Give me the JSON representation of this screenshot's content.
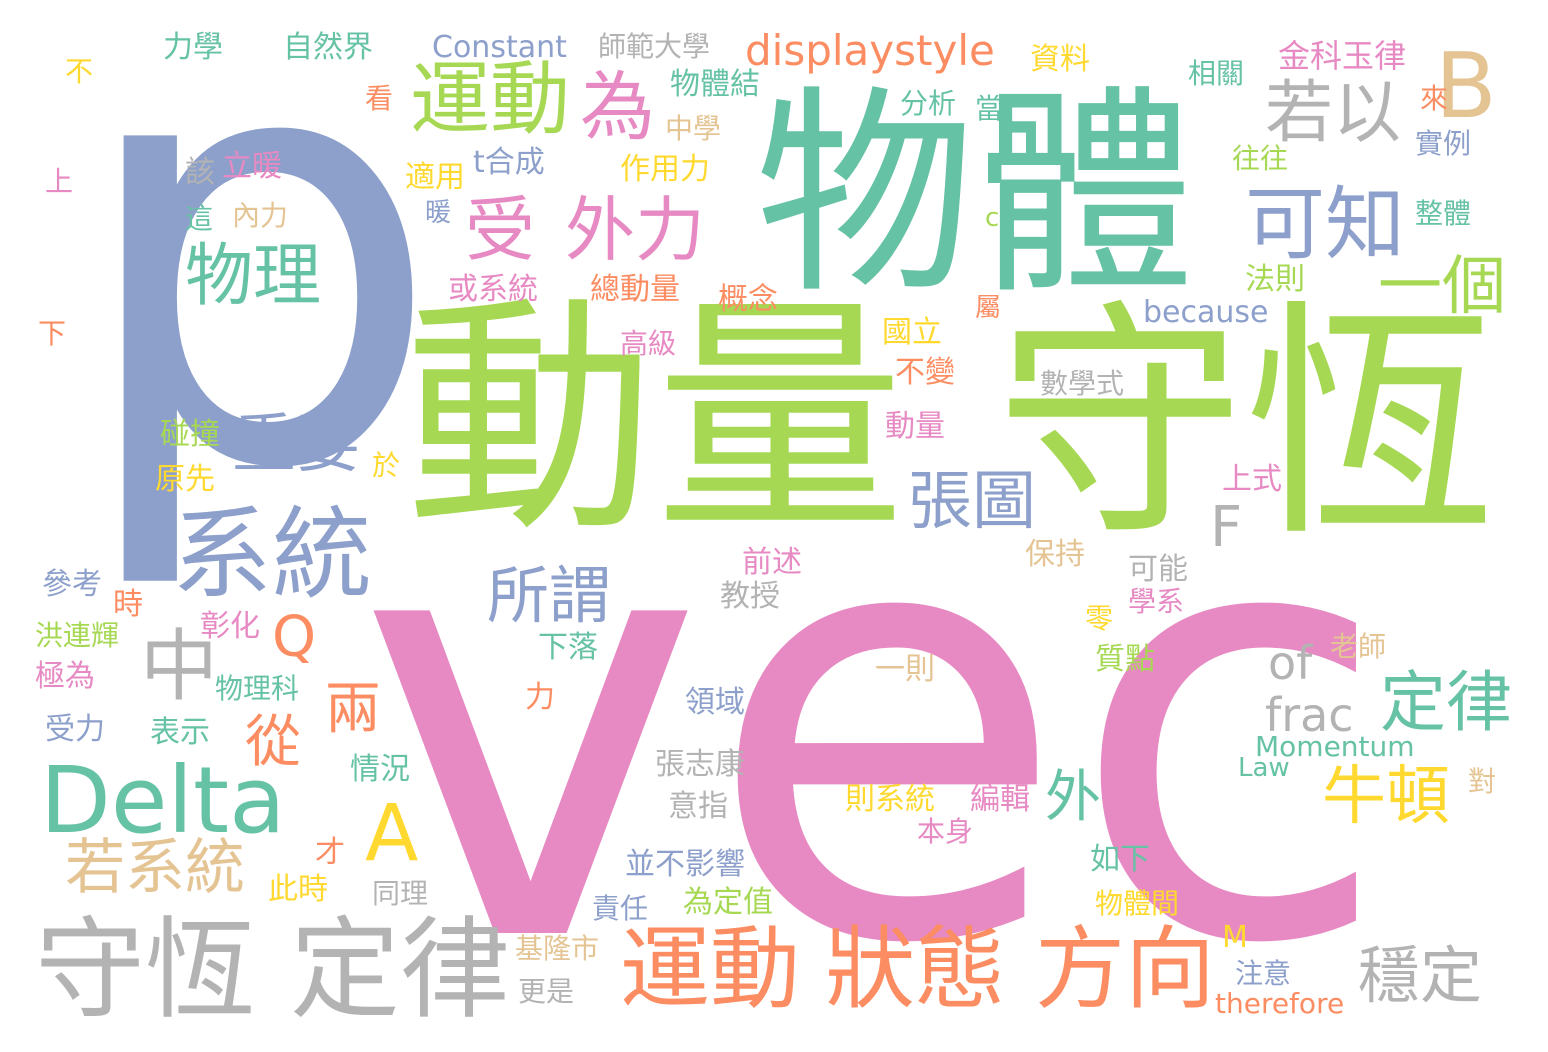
{
  "colors": {
    "blue": "#8DA0CB",
    "pink": "#E78AC3",
    "green": "#66C2A5",
    "lime": "#A6D854",
    "orange": "#FC8D62",
    "yellow": "#FFD92F",
    "tan": "#E5C494",
    "gray": "#B3B3B3"
  },
  "words": [
    {
      "text": "vec",
      "color": "pink"
    },
    {
      "text": "p",
      "color": "blue"
    },
    {
      "text": "物體",
      "color": "green"
    },
    {
      "text": "動量",
      "color": "lime"
    },
    {
      "text": "守恆",
      "color": "lime"
    },
    {
      "text": "系統",
      "color": "blue"
    },
    {
      "text": "Delta",
      "color": "green"
    },
    {
      "text": "守恆",
      "color": "gray"
    },
    {
      "text": "定律",
      "color": "gray"
    },
    {
      "text": "運動",
      "color": "orange"
    },
    {
      "text": "狀態",
      "color": "orange"
    },
    {
      "text": "方向",
      "color": "orange"
    },
    {
      "text": "運動",
      "color": "lime"
    },
    {
      "text": "為",
      "color": "pink"
    },
    {
      "text": "受",
      "color": "pink"
    },
    {
      "text": "外力",
      "color": "pink"
    },
    {
      "text": "若以",
      "color": "gray"
    },
    {
      "text": "可知",
      "color": "blue"
    },
    {
      "text": "B",
      "color": "tan"
    },
    {
      "text": "一個",
      "color": "lime"
    },
    {
      "text": "物理",
      "color": "green"
    },
    {
      "text": "重要",
      "color": "blue"
    },
    {
      "text": "中",
      "color": "gray"
    },
    {
      "text": "張圖",
      "color": "blue"
    },
    {
      "text": "F",
      "color": "gray"
    },
    {
      "text": "所謂",
      "color": "blue"
    },
    {
      "text": "定律",
      "color": "green"
    },
    {
      "text": "牛頓",
      "color": "yellow"
    },
    {
      "text": "A",
      "color": "yellow"
    },
    {
      "text": "若系統",
      "color": "tan"
    },
    {
      "text": "穩定",
      "color": "gray"
    },
    {
      "text": "displaystyle",
      "color": "orange"
    },
    {
      "text": "兩",
      "color": "orange"
    },
    {
      "text": "從",
      "color": "orange"
    },
    {
      "text": "Q",
      "color": "orange"
    },
    {
      "text": "外",
      "color": "green"
    },
    {
      "text": "of",
      "color": "gray"
    },
    {
      "text": "frac",
      "color": "gray"
    },
    {
      "text": "力學",
      "color": "green"
    },
    {
      "text": "自然界",
      "color": "green"
    },
    {
      "text": "Constant",
      "color": "blue"
    },
    {
      "text": "師範大學",
      "color": "gray"
    },
    {
      "text": "資料",
      "color": "yellow"
    },
    {
      "text": "金科玉律",
      "color": "pink"
    },
    {
      "text": "相關",
      "color": "green"
    },
    {
      "text": "不",
      "color": "yellow"
    },
    {
      "text": "看",
      "color": "orange"
    },
    {
      "text": "物體結",
      "color": "green"
    },
    {
      "text": "分析",
      "color": "green"
    },
    {
      "text": "當",
      "color": "green"
    },
    {
      "text": "來",
      "color": "orange"
    },
    {
      "text": "實例",
      "color": "blue"
    },
    {
      "text": "中學",
      "color": "tan"
    },
    {
      "text": "該",
      "color": "gray"
    },
    {
      "text": "立暖",
      "color": "pink"
    },
    {
      "text": "t合成",
      "color": "blue"
    },
    {
      "text": "作用力",
      "color": "yellow"
    },
    {
      "text": "往往",
      "color": "lime"
    },
    {
      "text": "上",
      "color": "pink"
    },
    {
      "text": "適用",
      "color": "yellow"
    },
    {
      "text": "暖",
      "color": "blue"
    },
    {
      "text": "這",
      "color": "green"
    },
    {
      "text": "內力",
      "color": "tan"
    },
    {
      "text": "c",
      "color": "lime"
    },
    {
      "text": "整體",
      "color": "green"
    },
    {
      "text": "或系統",
      "color": "pink"
    },
    {
      "text": "總動量",
      "color": "orange"
    },
    {
      "text": "概念",
      "color": "orange"
    },
    {
      "text": "法則",
      "color": "lime"
    },
    {
      "text": "下",
      "color": "orange"
    },
    {
      "text": "屬",
      "color": "orange"
    },
    {
      "text": "because",
      "color": "blue"
    },
    {
      "text": "高級",
      "color": "pink"
    },
    {
      "text": "國立",
      "color": "yellow"
    },
    {
      "text": "不變",
      "color": "orange"
    },
    {
      "text": "數學式",
      "color": "gray"
    },
    {
      "text": "碰撞",
      "color": "lime"
    },
    {
      "text": "動量",
      "color": "pink"
    },
    {
      "text": "原先",
      "color": "yellow"
    },
    {
      "text": "於",
      "color": "yellow"
    },
    {
      "text": "上式",
      "color": "pink"
    },
    {
      "text": "保持",
      "color": "tan"
    },
    {
      "text": "可能",
      "color": "gray"
    },
    {
      "text": "前述",
      "color": "pink"
    },
    {
      "text": "參考",
      "color": "blue"
    },
    {
      "text": "時",
      "color": "orange"
    },
    {
      "text": "彰化",
      "color": "pink"
    },
    {
      "text": "教授",
      "color": "gray"
    },
    {
      "text": "學系",
      "color": "pink"
    },
    {
      "text": "洪連輝",
      "color": "lime"
    },
    {
      "text": "下落",
      "color": "green"
    },
    {
      "text": "零",
      "color": "yellow"
    },
    {
      "text": "老師",
      "color": "tan"
    },
    {
      "text": "極為",
      "color": "pink"
    },
    {
      "text": "物理科",
      "color": "green"
    },
    {
      "text": "一則",
      "color": "tan"
    },
    {
      "text": "質點",
      "color": "lime"
    },
    {
      "text": "力",
      "color": "orange"
    },
    {
      "text": "領域",
      "color": "blue"
    },
    {
      "text": "受力",
      "color": "blue"
    },
    {
      "text": "表示",
      "color": "green"
    },
    {
      "text": "Momentum",
      "color": "green"
    },
    {
      "text": "情況",
      "color": "green"
    },
    {
      "text": "張志康",
      "color": "gray"
    },
    {
      "text": "Law",
      "color": "green"
    },
    {
      "text": "對",
      "color": "tan"
    },
    {
      "text": "則系統",
      "color": "yellow"
    },
    {
      "text": "編輯",
      "color": "pink"
    },
    {
      "text": "意指",
      "color": "gray"
    },
    {
      "text": "本身",
      "color": "pink"
    },
    {
      "text": "才",
      "color": "orange"
    },
    {
      "text": "如下",
      "color": "green"
    },
    {
      "text": "並不影響",
      "color": "blue"
    },
    {
      "text": "此時",
      "color": "yellow"
    },
    {
      "text": "同理",
      "color": "gray"
    },
    {
      "text": "為定值",
      "color": "lime"
    },
    {
      "text": "物體間",
      "color": "yellow"
    },
    {
      "text": "責任",
      "color": "blue"
    },
    {
      "text": "M",
      "color": "yellow"
    },
    {
      "text": "基隆市",
      "color": "tan"
    },
    {
      "text": "注意",
      "color": "blue"
    },
    {
      "text": "更是",
      "color": "gray"
    },
    {
      "text": "therefore",
      "color": "orange"
    }
  ]
}
